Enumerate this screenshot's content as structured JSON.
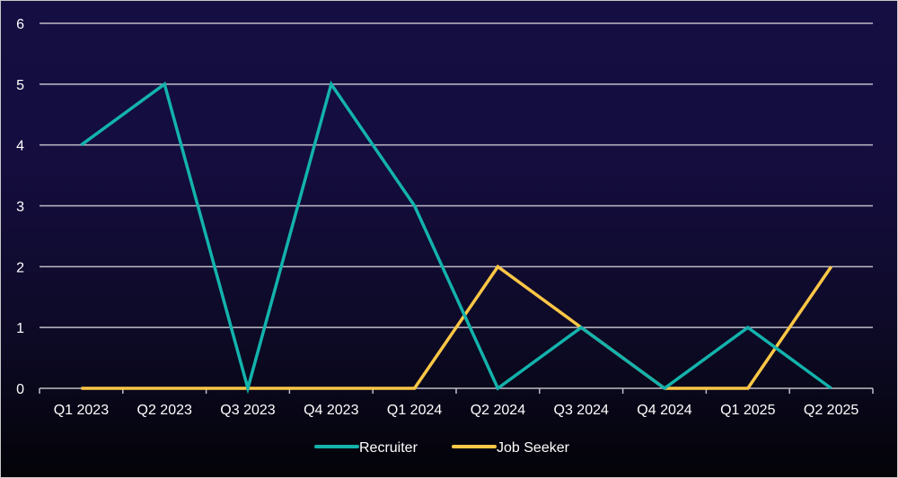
{
  "chart_data": {
    "type": "line",
    "title": "",
    "xlabel": "",
    "ylabel": "",
    "categories": [
      "Q1 2023",
      "Q2 2023",
      "Q3 2023",
      "Q4 2023",
      "Q1 2024",
      "Q2 2024",
      "Q3 2024",
      "Q4 2024",
      "Q1 2025",
      "Q2 2025"
    ],
    "series": [
      {
        "name": "Recruiter",
        "color": "#13b3ac",
        "values": [
          4,
          5,
          0,
          5,
          3,
          0,
          1,
          0,
          1,
          0
        ]
      },
      {
        "name": "Job Seeker",
        "color": "#fdc746",
        "values": [
          0,
          0,
          0,
          0,
          0,
          2,
          1,
          0,
          0,
          2
        ]
      }
    ],
    "ylim": [
      0,
      6
    ],
    "yticks": [
      "0",
      "1",
      "2",
      "3",
      "4",
      "5",
      "6"
    ],
    "grid": true,
    "legend_position": "bottom"
  },
  "colors": {
    "background_top": "#150e42",
    "background_bottom": "#030308",
    "gridline": "#c0bcc8",
    "text": "#ffffff"
  }
}
